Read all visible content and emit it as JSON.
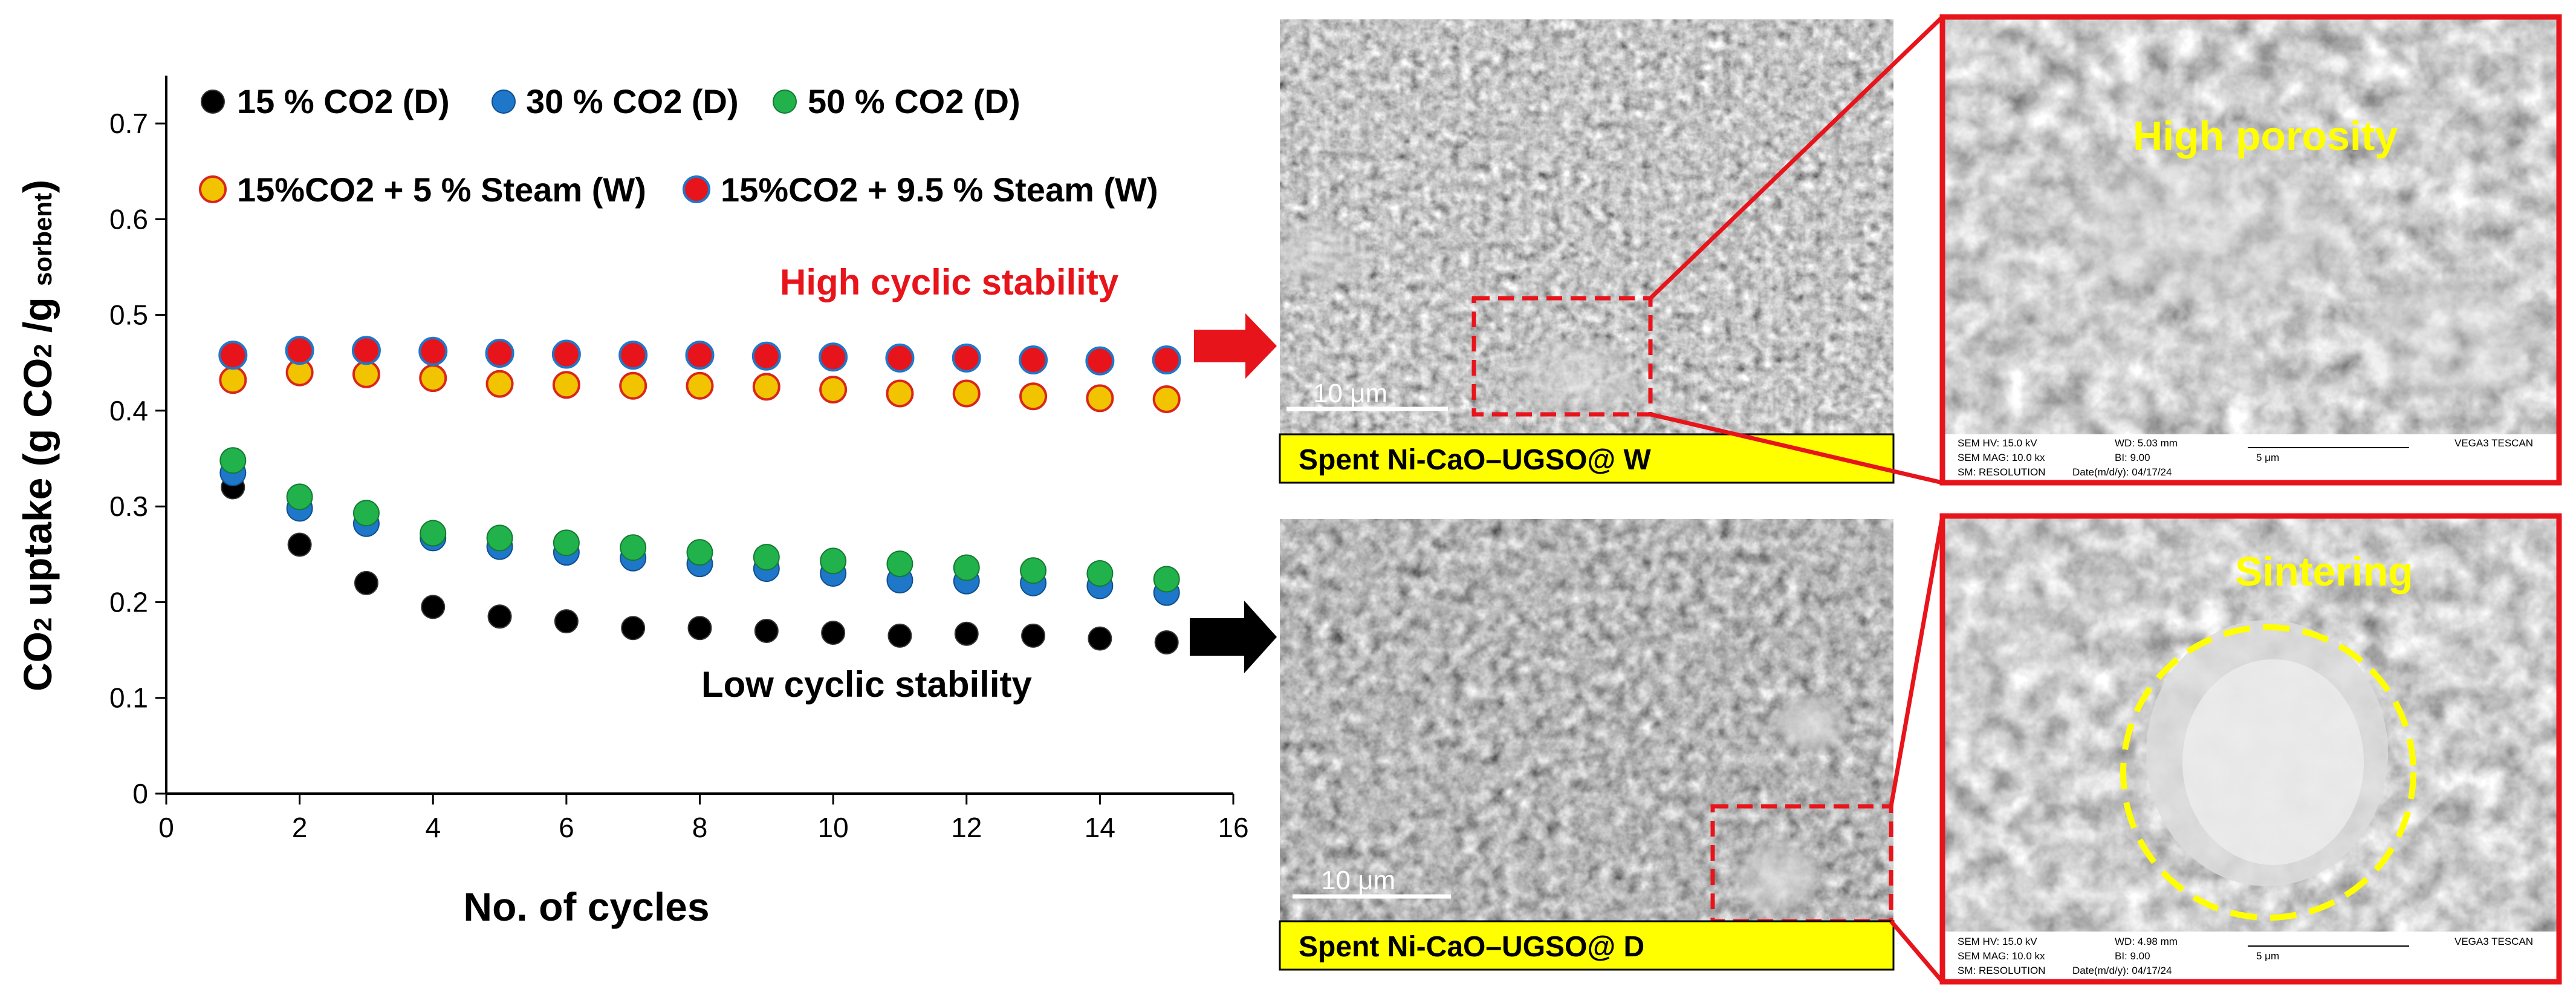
{
  "chart_data": {
    "type": "scatter",
    "xlabel": "No. of cycles",
    "ylabel_main": "CO",
    "ylabel_sub1": "2",
    "ylabel_mid": " uptake (g CO",
    "ylabel_sub2": "2",
    "ylabel_mid2": " /g ",
    "ylabel_sub3": "sorbent",
    "ylabel_end": ")",
    "xlim": [
      0,
      16
    ],
    "ylim": [
      0,
      0.75
    ],
    "xticks": [
      "0",
      "2",
      "4",
      "6",
      "8",
      "10",
      "12",
      "14",
      "16"
    ],
    "yticks": [
      "0",
      "0.1",
      "0.2",
      "0.3",
      "0.4",
      "0.5",
      "0.6",
      "0.7"
    ],
    "x": [
      1,
      2,
      3,
      4,
      5,
      6,
      7,
      8,
      9,
      10,
      11,
      12,
      13,
      14,
      15
    ],
    "series": [
      {
        "name": "15 % CO2 (D)",
        "color": "#000000",
        "values": [
          0.32,
          0.26,
          0.22,
          0.195,
          0.185,
          0.18,
          0.173,
          0.173,
          0.17,
          0.168,
          0.165,
          0.167,
          0.165,
          0.162,
          0.158
        ]
      },
      {
        "name": "30 % CO2 (D)",
        "color": "#1f77c9",
        "values": [
          0.335,
          0.298,
          0.282,
          0.267,
          0.258,
          0.252,
          0.246,
          0.24,
          0.235,
          0.23,
          0.223,
          0.222,
          0.22,
          0.217,
          0.21
        ]
      },
      {
        "name": "50 % CO2 (D)",
        "color": "#22b24c",
        "values": [
          0.348,
          0.31,
          0.293,
          0.272,
          0.267,
          0.262,
          0.257,
          0.252,
          0.247,
          0.243,
          0.24,
          0.236,
          0.233,
          0.23,
          0.224
        ]
      },
      {
        "name": "15%CO2 + 5 % Steam (W)",
        "color": "#f2c400",
        "values": [
          0.432,
          0.44,
          0.438,
          0.434,
          0.428,
          0.427,
          0.426,
          0.426,
          0.425,
          0.422,
          0.418,
          0.418,
          0.415,
          0.413,
          0.412
        ]
      },
      {
        "name": "15%CO2 + 9.5 %  Steam (W)",
        "color": "#e8141b",
        "values": [
          0.458,
          0.463,
          0.463,
          0.462,
          0.46,
          0.459,
          0.458,
          0.458,
          0.457,
          0.456,
          0.455,
          0.455,
          0.453,
          0.452,
          0.453
        ]
      }
    ]
  },
  "annotations": {
    "high_stability": "High cyclic stability",
    "low_stability": "Low cyclic stability"
  },
  "images": {
    "top": {
      "caption": "Spent Ni-CaO–UGSO@ W",
      "scale_bar": "10 μm",
      "zoom_label": "High porosity",
      "info_hv": "SEM HV: 15.0 kV",
      "info_wd": "WD: 5.03 mm",
      "info_mag": "SEM MAG: 10.0 kx",
      "info_bi": "BI: 9.00",
      "info_scale": "5 μm",
      "info_det": "SM: RESOLUTION",
      "info_date": "Date(m/d/y): 04/17/24",
      "info_brand": "VEGA3 TESCAN"
    },
    "bottom": {
      "caption": "Spent Ni-CaO–UGSO@ D",
      "scale_bar": "10 μm",
      "zoom_label": "Sintering",
      "info_hv": "SEM HV: 15.0 kV",
      "info_wd": "WD: 4.98 mm",
      "info_mag": "SEM MAG: 10.0 kx",
      "info_bi": "BI: 9.00",
      "info_scale": "5 μm",
      "info_det": "SM: RESOLUTION",
      "info_date": "Date(m/d/y): 04/17/24",
      "info_brand": "VEGA3 TESCAN"
    }
  },
  "colors": {
    "red_annotation": "#e8141b",
    "caption_bg": "#ffff00",
    "zoom_label": "#ffff00"
  }
}
